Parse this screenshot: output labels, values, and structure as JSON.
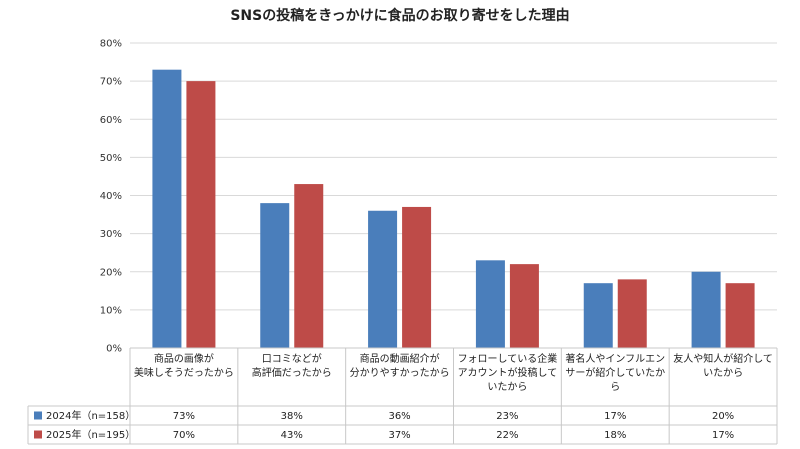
{
  "chart_data": {
    "type": "bar",
    "title": "SNSの投稿をきっかけに食品のお取り寄せをした理由",
    "categories": [
      [
        "商品の画像が",
        "美味しそうだったから"
      ],
      [
        "口コミなどが",
        "高評価だったから"
      ],
      [
        "商品の動画紹介が",
        "分かりやすかったから"
      ],
      [
        "フォローしている企業",
        "アカウントが投稿して",
        "いたから"
      ],
      [
        "著名人やインフルエン",
        "サーが紹介していたか",
        "ら"
      ],
      [
        "友人や知人が紹介して",
        "いたから"
      ]
    ],
    "series": [
      {
        "name": "2024年（n=158）",
        "color": "#4a7ebb",
        "values": [
          73,
          38,
          36,
          23,
          17,
          20
        ],
        "labels": [
          "73%",
          "38%",
          "36%",
          "23%",
          "17%",
          "20%"
        ]
      },
      {
        "name": "2025年（n=195）",
        "color": "#be4b48",
        "values": [
          70,
          43,
          37,
          22,
          18,
          17
        ],
        "labels": [
          "70%",
          "43%",
          "37%",
          "22%",
          "18%",
          "17%"
        ]
      }
    ],
    "ylim": [
      0,
      80
    ],
    "yticks": [
      "0%",
      "10%",
      "20%",
      "30%",
      "40%",
      "50%",
      "60%",
      "70%",
      "80%"
    ],
    "grid": true,
    "legend": "data-table"
  }
}
